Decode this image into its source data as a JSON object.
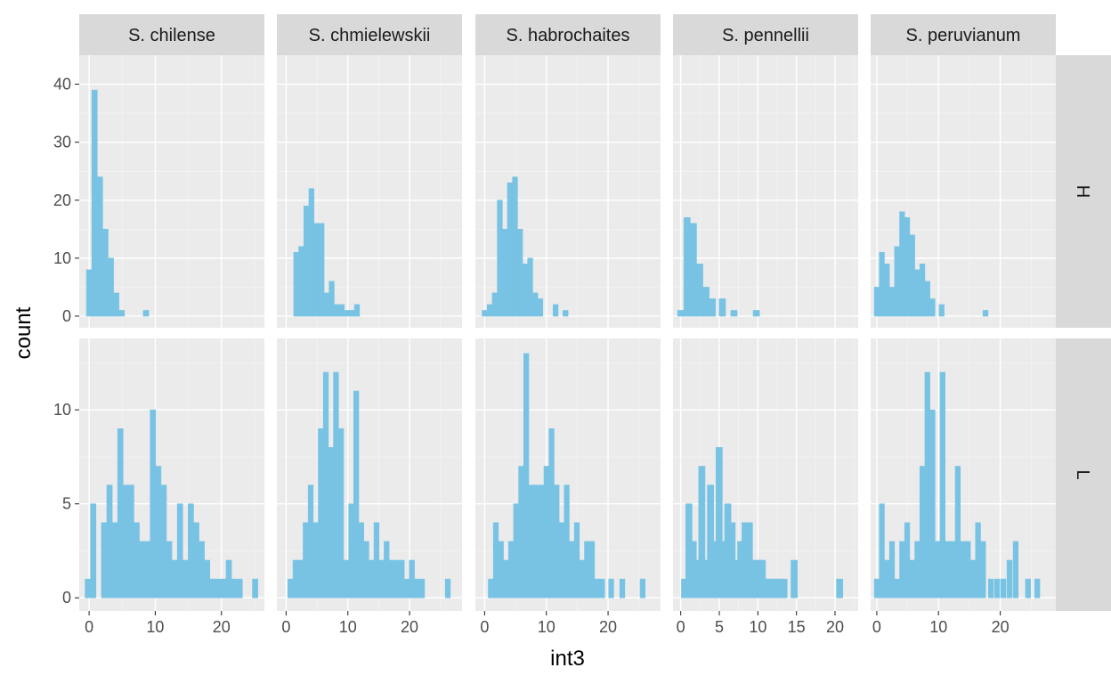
{
  "chart_data": {
    "type": "bar",
    "facet_columns": [
      "S. chilense",
      "S. chmielewskii",
      "S. habrochaites",
      "S. pennellii",
      "S. peruvianum"
    ],
    "facet_rows": [
      "H",
      "L"
    ],
    "xlabel": "int3",
    "ylabel": "count",
    "bar_color": "#78c3e4",
    "panel_background": "#ebebeb",
    "grid": true,
    "bin_width": 0.82,
    "row_ylims": {
      "H": [
        -2,
        45
      ],
      "L": [
        -0.7,
        13.8
      ]
    },
    "row_yticks": {
      "H": [
        0,
        10,
        20,
        30,
        40
      ],
      "L": [
        0,
        5,
        10
      ]
    },
    "col_xlims": [
      [
        -1.5,
        26.5
      ],
      [
        -1.5,
        28.5
      ],
      [
        -1.5,
        28.5
      ],
      [
        -1,
        23
      ],
      [
        -1,
        29
      ]
    ],
    "col_xticks": [
      [
        0,
        10,
        20
      ],
      [
        0,
        10,
        20
      ],
      [
        0,
        10,
        20
      ],
      [
        0,
        5,
        10,
        15,
        20
      ],
      [
        0,
        10,
        20
      ]
    ],
    "series": [
      {
        "name": "S. chilense",
        "row": "H",
        "x": [
          0,
          0.82,
          1.64,
          2.46,
          3.28,
          4.1,
          4.92,
          8.6
        ],
        "values": [
          8,
          39,
          24,
          15,
          10,
          4,
          1,
          1
        ]
      },
      {
        "name": "S. chmielewskii",
        "row": "H",
        "x": [
          1.64,
          2.46,
          3.28,
          4.1,
          4.92,
          5.74,
          6.56,
          7.38,
          8.2,
          9.02,
          9.84,
          10.66,
          11.48
        ],
        "values": [
          11,
          12,
          19,
          22,
          16,
          16,
          4,
          6,
          2,
          2,
          1,
          1,
          2
        ]
      },
      {
        "name": "S. habrochaites",
        "row": "H",
        "x": [
          0,
          0.82,
          1.64,
          2.46,
          3.28,
          4.1,
          4.92,
          5.74,
          6.56,
          7.38,
          8.2,
          9.02,
          11.5,
          13.1
        ],
        "values": [
          1,
          2,
          4,
          20,
          15,
          23,
          24,
          15,
          9,
          10,
          4,
          3,
          2,
          1
        ]
      },
      {
        "name": "S. pennellii",
        "row": "H",
        "x": [
          0,
          0.82,
          1.64,
          2.46,
          3.28,
          4.1,
          5.4,
          6.9,
          9.8
        ],
        "values": [
          1,
          17,
          16,
          9,
          5,
          3,
          3,
          1,
          1
        ]
      },
      {
        "name": "S. peruvianum",
        "row": "H",
        "x": [
          0,
          0.82,
          1.64,
          2.46,
          3.28,
          4.1,
          4.92,
          5.74,
          6.56,
          7.38,
          8.2,
          9.02,
          10.5,
          17.6
        ],
        "values": [
          5,
          11,
          9,
          5,
          12,
          18,
          17,
          14,
          8,
          9,
          6,
          3,
          2,
          1
        ]
      },
      {
        "name": "S. chilense",
        "row": "L",
        "x": [
          -0.2,
          0.62,
          1.44,
          2.26,
          3.08,
          3.9,
          4.72,
          5.54,
          6.36,
          7.18,
          8.0,
          8.82,
          9.64,
          10.46,
          11.28,
          12.1,
          12.92,
          13.74,
          14.56,
          15.38,
          16.2,
          17.02,
          17.84,
          18.66,
          19.48,
          20.3,
          21.12,
          21.94,
          22.76,
          25.1
        ],
        "values": [
          1,
          5,
          0,
          4,
          6,
          4,
          9,
          6,
          6,
          4,
          3,
          3,
          10,
          7,
          6,
          3,
          2,
          5,
          2,
          5,
          4,
          3,
          2,
          1,
          1,
          1,
          2,
          1,
          1,
          1
        ]
      },
      {
        "name": "S. chmielewskii",
        "row": "L",
        "x": [
          0.7,
          1.52,
          2.34,
          3.16,
          3.98,
          4.8,
          5.62,
          6.44,
          7.26,
          8.08,
          8.9,
          9.72,
          10.54,
          11.36,
          12.18,
          13.0,
          13.82,
          14.64,
          15.46,
          16.28,
          17.1,
          17.92,
          18.74,
          19.56,
          20.38,
          21.2,
          22.02,
          26.2
        ],
        "values": [
          1,
          2,
          2,
          4,
          6,
          4,
          9,
          12,
          8,
          12,
          9,
          2,
          5,
          11,
          4,
          3,
          2,
          4,
          2,
          3,
          2,
          2,
          2,
          1,
          2,
          1,
          1,
          1
        ]
      },
      {
        "name": "S. habrochaites",
        "row": "L",
        "x": [
          1.0,
          1.82,
          2.64,
          3.46,
          4.28,
          5.1,
          5.92,
          6.74,
          7.56,
          8.38,
          9.2,
          10.02,
          10.84,
          11.66,
          12.48,
          13.3,
          14.12,
          14.94,
          15.76,
          16.58,
          17.4,
          18.22,
          19.04,
          20.5,
          22.3,
          25.6
        ],
        "values": [
          1,
          4,
          3,
          2,
          3,
          5,
          7,
          13,
          6,
          6,
          6,
          7,
          9,
          6,
          4,
          6,
          3,
          4,
          2,
          3,
          3,
          1,
          1,
          1,
          1,
          1
        ]
      },
      {
        "name": "S. pennellii",
        "row": "L",
        "x": [
          0.5,
          1.06,
          1.62,
          2.18,
          2.74,
          3.3,
          3.86,
          4.42,
          4.98,
          5.54,
          6.1,
          6.66,
          7.22,
          7.78,
          8.34,
          8.9,
          9.46,
          10.02,
          10.58,
          11.14,
          11.7,
          12.26,
          12.82,
          13.38,
          14.7,
          20.6
        ],
        "values": [
          1,
          5,
          3,
          2,
          7,
          2,
          6,
          3,
          8,
          3,
          5,
          4,
          2,
          3,
          4,
          4,
          2,
          2,
          2,
          1,
          1,
          1,
          1,
          1,
          2,
          1
        ]
      },
      {
        "name": "S. peruvianum",
        "row": "L",
        "x": [
          0,
          0.82,
          1.64,
          2.46,
          3.28,
          4.1,
          4.92,
          5.74,
          6.56,
          7.38,
          8.2,
          9.02,
          9.84,
          10.66,
          11.48,
          12.3,
          13.12,
          13.94,
          14.76,
          15.58,
          16.4,
          17.22,
          18.5,
          19.5,
          20.5,
          21.5,
          22.5,
          24.5,
          26.0
        ],
        "values": [
          1,
          5,
          2,
          3,
          1,
          3,
          4,
          2,
          3,
          7,
          12,
          10,
          3,
          12,
          3,
          3,
          7,
          3,
          3,
          2,
          4,
          3,
          1,
          1,
          1,
          2,
          3,
          1,
          1
        ]
      }
    ]
  }
}
